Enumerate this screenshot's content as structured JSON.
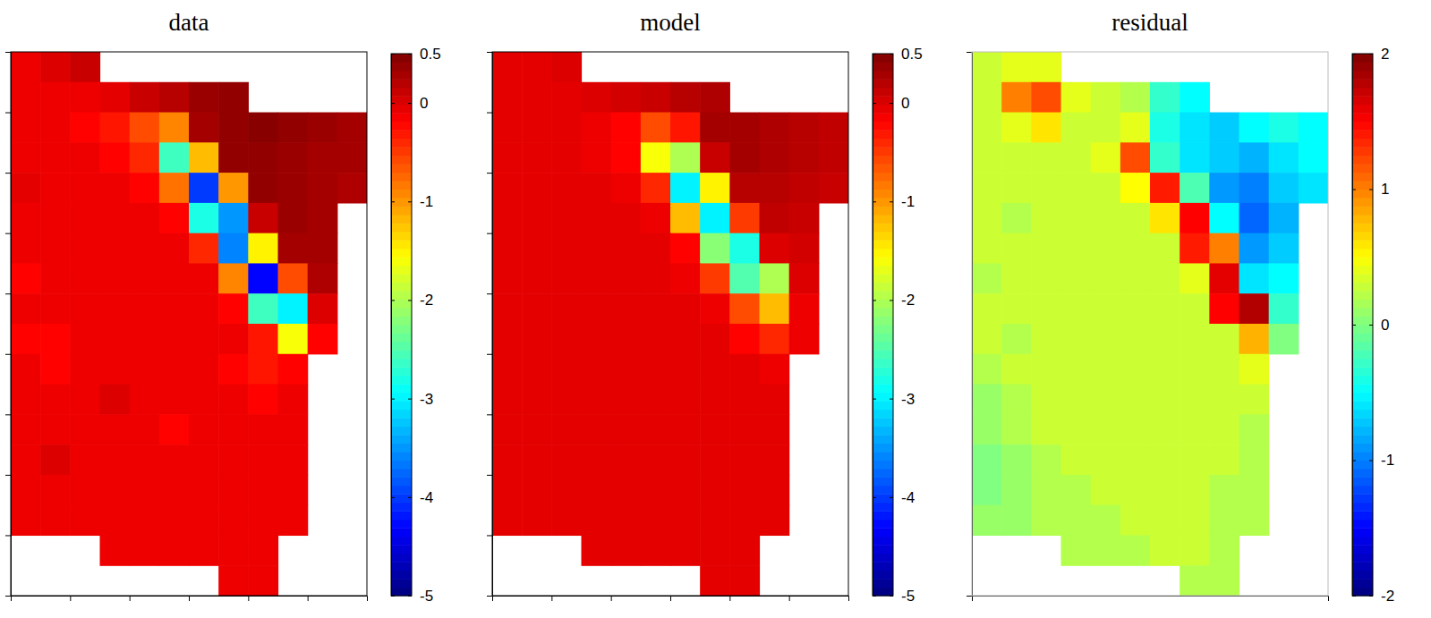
{
  "chart_data": [
    {
      "type": "heatmap",
      "title": "data",
      "tick_labels": false,
      "xlim": [
        0,
        6
      ],
      "ylim": [
        0,
        9
      ],
      "xticks": [
        1,
        2,
        3,
        4,
        5
      ],
      "yticks": [
        1,
        2,
        3,
        4,
        5,
        6,
        7,
        8
      ],
      "x": [
        0.25,
        0.75,
        1.25,
        1.75,
        2.25,
        2.75,
        3.25,
        3.75,
        4.25,
        4.75,
        5.25,
        5.75
      ],
      "y": [
        8.75,
        8.25,
        7.75,
        7.25,
        6.75,
        6.25,
        5.75,
        5.25,
        4.75,
        4.25,
        3.75,
        3.25,
        2.75,
        2.25,
        1.75,
        1.25,
        0.75,
        0.25
      ],
      "values": [
        [
          -0.1,
          0.0,
          0.1,
          null,
          null,
          null,
          null,
          null,
          null,
          null,
          null,
          null
        ],
        [
          -0.1,
          -0.1,
          -0.1,
          -0.05,
          0.1,
          0.2,
          0.35,
          0.4,
          null,
          null,
          null,
          null
        ],
        [
          -0.1,
          -0.1,
          -0.2,
          -0.3,
          -0.6,
          -0.9,
          0.3,
          0.4,
          0.45,
          0.4,
          0.35,
          0.3
        ],
        [
          -0.1,
          -0.1,
          -0.1,
          -0.2,
          -0.4,
          -2.6,
          -1.2,
          0.4,
          0.4,
          0.35,
          0.3,
          0.3
        ],
        [
          -0.05,
          -0.1,
          -0.1,
          -0.1,
          -0.2,
          -0.8,
          -4.0,
          -1.0,
          0.4,
          0.35,
          0.3,
          0.25
        ],
        [
          -0.1,
          -0.1,
          -0.1,
          -0.1,
          -0.1,
          -0.2,
          -2.8,
          -3.5,
          0.1,
          0.35,
          0.3,
          null
        ],
        [
          -0.1,
          -0.1,
          -0.1,
          -0.1,
          -0.1,
          -0.1,
          -0.4,
          -3.6,
          -1.5,
          0.3,
          0.3,
          null
        ],
        [
          -0.2,
          -0.1,
          -0.1,
          -0.1,
          -0.1,
          -0.1,
          -0.1,
          -0.9,
          -4.3,
          -0.6,
          0.25,
          null
        ],
        [
          -0.1,
          -0.1,
          -0.1,
          -0.1,
          -0.1,
          -0.1,
          -0.1,
          -0.2,
          -2.6,
          -3.0,
          0.0,
          null
        ],
        [
          -0.2,
          -0.2,
          -0.1,
          -0.1,
          -0.1,
          -0.1,
          -0.1,
          -0.1,
          -0.3,
          -1.6,
          -0.2,
          null
        ],
        [
          -0.1,
          -0.2,
          -0.1,
          -0.1,
          -0.1,
          -0.1,
          -0.1,
          -0.2,
          -0.3,
          -0.2,
          null,
          null
        ],
        [
          -0.1,
          -0.1,
          -0.1,
          0.0,
          -0.1,
          -0.1,
          -0.1,
          -0.1,
          -0.2,
          -0.1,
          null,
          null
        ],
        [
          -0.1,
          -0.1,
          -0.1,
          -0.1,
          -0.1,
          -0.2,
          -0.1,
          -0.1,
          -0.1,
          -0.1,
          null,
          null
        ],
        [
          -0.1,
          0.0,
          -0.1,
          -0.1,
          -0.1,
          -0.1,
          -0.1,
          -0.1,
          -0.1,
          -0.1,
          null,
          null
        ],
        [
          -0.1,
          -0.1,
          -0.1,
          -0.1,
          -0.1,
          -0.1,
          -0.1,
          -0.1,
          -0.1,
          -0.1,
          null,
          null
        ],
        [
          -0.1,
          -0.1,
          -0.1,
          -0.1,
          -0.1,
          -0.1,
          -0.1,
          -0.1,
          -0.1,
          -0.1,
          null,
          null
        ],
        [
          null,
          null,
          null,
          -0.1,
          -0.1,
          -0.1,
          -0.1,
          -0.1,
          -0.1,
          null,
          null,
          null
        ],
        [
          null,
          null,
          null,
          null,
          null,
          null,
          null,
          -0.1,
          -0.1,
          null,
          null,
          null
        ]
      ],
      "colorbar": {
        "range": [
          -5,
          0.5
        ],
        "ticks": [
          0.5,
          0,
          -1,
          -2,
          -3,
          -4,
          -5
        ]
      }
    },
    {
      "type": "heatmap",
      "title": "model",
      "tick_labels": false,
      "xlim": [
        0,
        6
      ],
      "ylim": [
        0,
        9
      ],
      "xticks": [
        1,
        2,
        3,
        4,
        5
      ],
      "yticks": [
        1,
        2,
        3,
        4,
        5,
        6,
        7,
        8
      ],
      "x": [
        0.25,
        0.75,
        1.25,
        1.75,
        2.25,
        2.75,
        3.25,
        3.75,
        4.25,
        4.75,
        5.25,
        5.75
      ],
      "y": [
        8.75,
        8.25,
        7.75,
        7.25,
        6.75,
        6.25,
        5.75,
        5.25,
        4.75,
        4.25,
        3.75,
        3.25,
        2.75,
        2.25,
        1.75,
        1.25,
        0.75,
        0.25
      ],
      "values": [
        [
          -0.05,
          -0.05,
          0.0,
          null,
          null,
          null,
          null,
          null,
          null,
          null,
          null,
          null
        ],
        [
          -0.05,
          -0.05,
          -0.05,
          0.0,
          0.05,
          0.1,
          0.2,
          0.25,
          null,
          null,
          null,
          null
        ],
        [
          -0.05,
          -0.05,
          -0.05,
          -0.1,
          -0.2,
          -0.6,
          -0.3,
          0.3,
          0.3,
          0.25,
          0.2,
          0.15
        ],
        [
          -0.05,
          -0.05,
          -0.05,
          -0.1,
          -0.2,
          -1.6,
          -2.0,
          0.1,
          0.3,
          0.25,
          0.2,
          0.15
        ],
        [
          -0.05,
          -0.05,
          -0.05,
          -0.05,
          -0.1,
          -0.4,
          -3.0,
          -1.5,
          0.2,
          0.2,
          0.15,
          0.1
        ],
        [
          -0.05,
          -0.05,
          -0.05,
          -0.05,
          -0.05,
          -0.1,
          -1.2,
          -3.0,
          -0.5,
          0.15,
          0.1,
          null
        ],
        [
          -0.05,
          -0.05,
          -0.05,
          -0.05,
          -0.05,
          -0.05,
          -0.2,
          -2.2,
          -2.8,
          0.0,
          0.05,
          null
        ],
        [
          -0.05,
          -0.05,
          -0.05,
          -0.05,
          -0.05,
          -0.05,
          -0.1,
          -0.5,
          -2.5,
          -2.0,
          0.0,
          null
        ],
        [
          -0.05,
          -0.05,
          -0.05,
          -0.05,
          -0.05,
          -0.05,
          -0.05,
          -0.1,
          -0.6,
          -1.2,
          -0.1,
          null
        ],
        [
          -0.05,
          -0.05,
          -0.05,
          -0.05,
          -0.05,
          -0.05,
          -0.05,
          -0.05,
          -0.2,
          -0.4,
          -0.1,
          null
        ],
        [
          -0.05,
          -0.05,
          -0.05,
          -0.05,
          -0.05,
          -0.05,
          -0.05,
          -0.05,
          -0.05,
          -0.1,
          null,
          null
        ],
        [
          -0.05,
          -0.05,
          -0.05,
          -0.05,
          -0.05,
          -0.05,
          -0.05,
          -0.05,
          -0.05,
          -0.05,
          null,
          null
        ],
        [
          -0.05,
          -0.05,
          -0.05,
          -0.05,
          -0.05,
          -0.05,
          -0.05,
          -0.05,
          -0.05,
          -0.05,
          null,
          null
        ],
        [
          -0.05,
          -0.05,
          -0.05,
          -0.05,
          -0.05,
          -0.05,
          -0.05,
          -0.05,
          -0.05,
          -0.05,
          null,
          null
        ],
        [
          -0.05,
          -0.05,
          -0.05,
          -0.05,
          -0.05,
          -0.05,
          -0.05,
          -0.05,
          -0.05,
          -0.05,
          null,
          null
        ],
        [
          -0.05,
          -0.05,
          -0.05,
          -0.05,
          -0.05,
          -0.05,
          -0.05,
          -0.05,
          -0.05,
          -0.05,
          null,
          null
        ],
        [
          null,
          null,
          null,
          -0.05,
          -0.05,
          -0.05,
          -0.05,
          -0.05,
          -0.05,
          null,
          null,
          null
        ],
        [
          null,
          null,
          null,
          null,
          null,
          null,
          null,
          -0.05,
          -0.05,
          null,
          null,
          null
        ]
      ],
      "colorbar": {
        "range": [
          -5,
          0.5
        ],
        "ticks": [
          0.5,
          0,
          -1,
          -2,
          -3,
          -4,
          -5
        ]
      }
    },
    {
      "type": "heatmap",
      "title": "residual",
      "tick_labels": false,
      "xlim": [
        0,
        6
      ],
      "ylim": [
        0,
        9
      ],
      "x": [
        0.25,
        0.75,
        1.25,
        1.75,
        2.25,
        2.75,
        3.25,
        3.75,
        4.25,
        4.75,
        5.25,
        5.75
      ],
      "y": [
        8.75,
        8.25,
        7.75,
        7.25,
        6.75,
        6.25,
        5.75,
        5.25,
        4.75,
        4.25,
        3.75,
        3.25,
        2.75,
        2.25,
        1.75,
        1.25,
        0.75,
        0.25
      ],
      "values": [
        [
          0.3,
          0.4,
          0.4,
          null,
          null,
          null,
          null,
          null,
          null,
          null,
          null,
          null
        ],
        [
          0.3,
          1.0,
          1.2,
          0.4,
          0.3,
          0.2,
          -0.3,
          -0.5,
          null,
          null,
          null,
          null
        ],
        [
          0.3,
          0.4,
          0.6,
          0.3,
          0.3,
          0.4,
          -0.4,
          -0.6,
          -0.7,
          -0.5,
          -0.4,
          -0.5
        ],
        [
          0.3,
          0.3,
          0.3,
          0.3,
          0.4,
          1.2,
          -0.3,
          -0.6,
          -0.7,
          -0.8,
          -0.6,
          -0.5
        ],
        [
          0.3,
          0.3,
          0.3,
          0.3,
          0.3,
          0.5,
          1.4,
          -0.2,
          -0.9,
          -1.0,
          -0.7,
          -0.6
        ],
        [
          0.3,
          0.2,
          0.3,
          0.3,
          0.3,
          0.3,
          0.6,
          1.5,
          -0.5,
          -1.1,
          -0.8,
          null
        ],
        [
          0.3,
          0.3,
          0.3,
          0.3,
          0.3,
          0.3,
          0.3,
          1.4,
          1.0,
          -0.9,
          -0.7,
          null
        ],
        [
          0.2,
          0.3,
          0.3,
          0.3,
          0.3,
          0.3,
          0.3,
          0.4,
          1.6,
          -0.6,
          -0.5,
          null
        ],
        [
          0.3,
          0.3,
          0.3,
          0.3,
          0.3,
          0.3,
          0.3,
          0.3,
          1.5,
          1.8,
          -0.3,
          null
        ],
        [
          0.3,
          0.2,
          0.3,
          0.3,
          0.3,
          0.3,
          0.3,
          0.3,
          0.3,
          0.8,
          0.0,
          null
        ],
        [
          0.2,
          0.3,
          0.3,
          0.3,
          0.3,
          0.3,
          0.3,
          0.3,
          0.3,
          0.4,
          null,
          null
        ],
        [
          0.1,
          0.2,
          0.3,
          0.3,
          0.3,
          0.3,
          0.3,
          0.3,
          0.3,
          0.3,
          null,
          null
        ],
        [
          0.1,
          0.2,
          0.3,
          0.3,
          0.3,
          0.3,
          0.3,
          0.3,
          0.3,
          0.2,
          null,
          null
        ],
        [
          0.0,
          0.1,
          0.2,
          0.3,
          0.3,
          0.3,
          0.3,
          0.3,
          0.3,
          0.2,
          null,
          null
        ],
        [
          0.0,
          0.1,
          0.2,
          0.2,
          0.3,
          0.3,
          0.3,
          0.3,
          0.2,
          0.2,
          null,
          null
        ],
        [
          0.1,
          0.1,
          0.2,
          0.2,
          0.2,
          0.3,
          0.3,
          0.3,
          0.2,
          0.2,
          null,
          null
        ],
        [
          null,
          null,
          null,
          0.2,
          0.2,
          0.2,
          0.3,
          0.3,
          0.2,
          null,
          null,
          null
        ],
        [
          null,
          null,
          null,
          null,
          null,
          null,
          null,
          0.2,
          0.2,
          null,
          null,
          null
        ]
      ],
      "colorbar": {
        "range": [
          -2,
          2
        ],
        "ticks": [
          2,
          1,
          0,
          -1,
          -2
        ]
      }
    }
  ]
}
